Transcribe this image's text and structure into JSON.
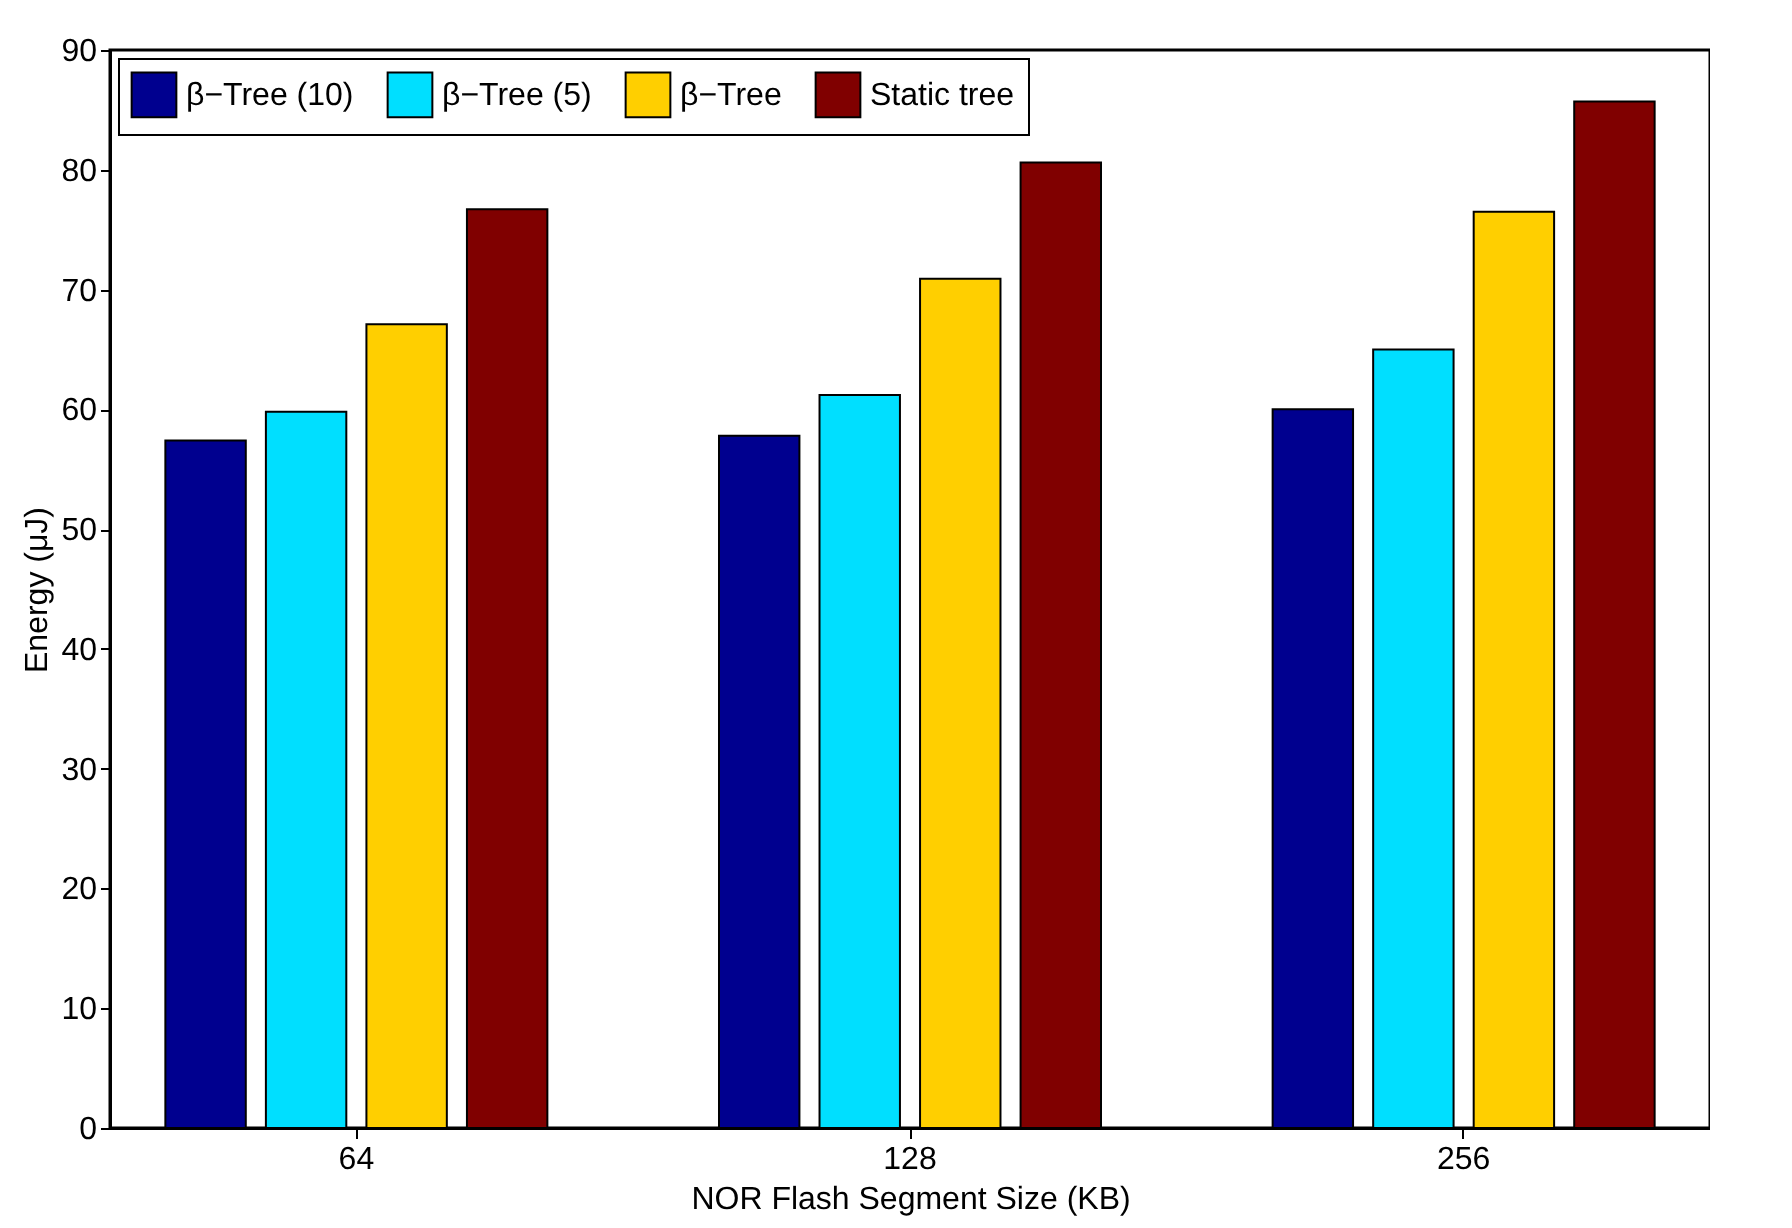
{
  "chart_data": {
    "type": "bar",
    "xlabel": "NOR Flash Segment Size (KB)",
    "ylabel": "Energy (μJ)",
    "categories": [
      "64",
      "128",
      "256"
    ],
    "series": [
      {
        "name": "β−Tree (10)",
        "color": "#00008f",
        "values": [
          57.4,
          57.8,
          60.0
        ]
      },
      {
        "name": "β−Tree (5)",
        "color": "#00dfff",
        "values": [
          59.8,
          61.2,
          65.0
        ]
      },
      {
        "name": "β−Tree",
        "color": "#ffcf00",
        "values": [
          67.1,
          70.9,
          76.5
        ]
      },
      {
        "name": "Static tree",
        "color": "#800000",
        "values": [
          76.7,
          80.6,
          85.7
        ]
      }
    ],
    "ylim": [
      0,
      90
    ],
    "yticks": [
      0,
      10,
      20,
      30,
      40,
      50,
      60,
      70,
      80,
      90
    ],
    "grid": false,
    "legend": "top left"
  }
}
